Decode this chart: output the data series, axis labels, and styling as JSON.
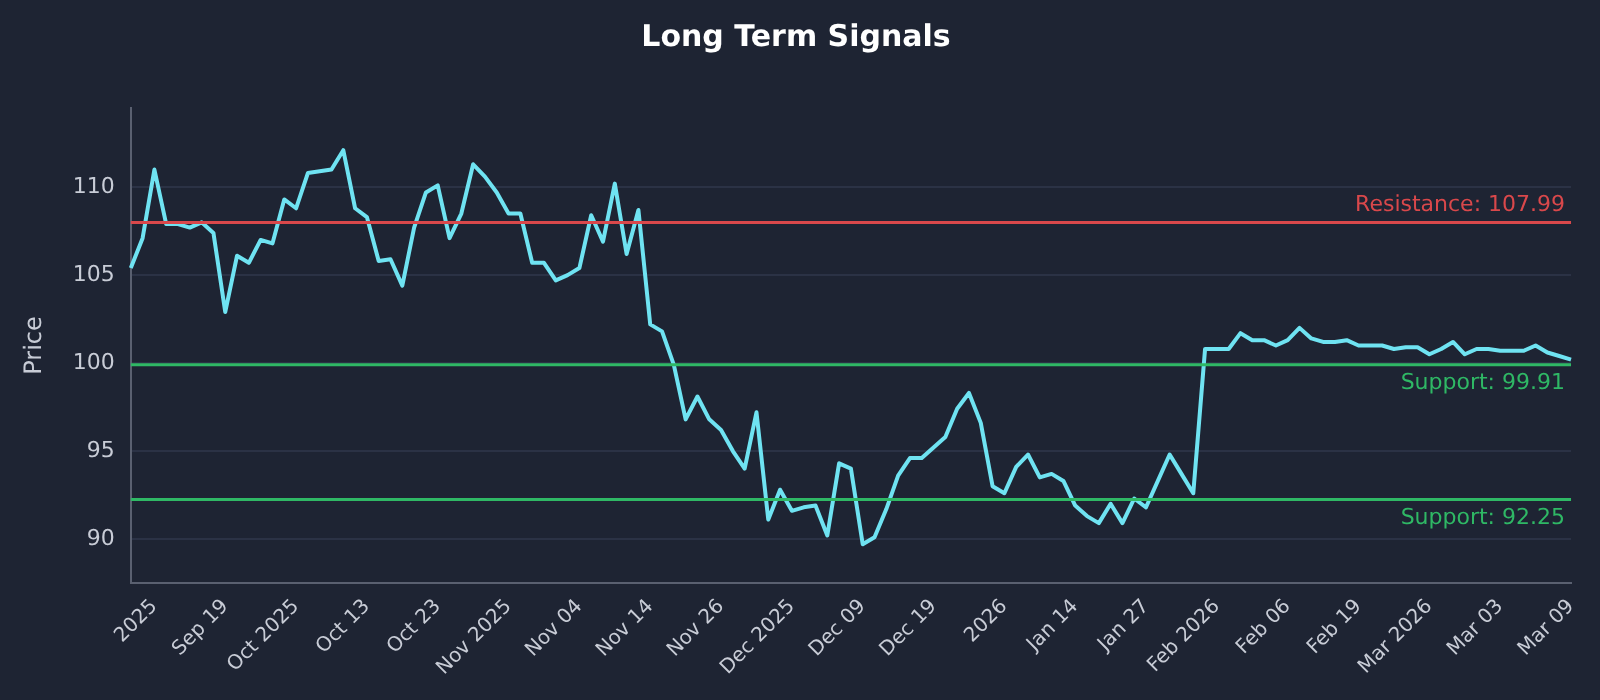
{
  "chart_data": {
    "type": "line",
    "title": "Long Term Signals",
    "ylabel": "Price",
    "categories": [
      null,
      null,
      "2025",
      null,
      null,
      null,
      null,
      null,
      "Sep 19",
      null,
      null,
      null,
      null,
      null,
      "Oct 2025",
      null,
      null,
      null,
      null,
      null,
      "Oct 13",
      null,
      null,
      null,
      null,
      null,
      "Oct 23",
      null,
      null,
      null,
      null,
      null,
      "Nov 2025",
      null,
      null,
      null,
      null,
      null,
      "Nov 04",
      null,
      null,
      null,
      null,
      null,
      "Nov 14",
      null,
      null,
      null,
      null,
      null,
      "Nov 26",
      null,
      null,
      null,
      null,
      null,
      "Dec 2025",
      null,
      null,
      null,
      null,
      null,
      "Dec 09",
      null,
      null,
      null,
      null,
      null,
      "Dec 19",
      null,
      null,
      null,
      null,
      null,
      "2026",
      null,
      null,
      null,
      null,
      null,
      "Jan 14",
      null,
      null,
      null,
      null,
      null,
      "Jan 27",
      null,
      null,
      null,
      null,
      null,
      "Feb 2026",
      null,
      null,
      null,
      null,
      null,
      "Feb 06",
      null,
      null,
      null,
      null,
      null,
      "Feb 19",
      null,
      null,
      null,
      null,
      null,
      "Mar 2026",
      null,
      null,
      null,
      null,
      null,
      "Mar 03",
      null,
      null,
      null,
      null,
      null,
      "Mar 09"
    ],
    "series": [
      {
        "color": "#6fe3f2",
        "values": [
          105.4,
          107.1,
          111.0,
          107.9,
          107.9,
          107.7,
          108.0,
          107.4,
          102.9,
          106.1,
          105.7,
          107.0,
          106.8,
          109.3,
          108.8,
          110.8,
          110.9,
          111.0,
          112.1,
          108.8,
          108.3,
          105.8,
          105.9,
          104.4,
          107.7,
          109.7,
          110.1,
          107.1,
          108.5,
          111.3,
          110.6,
          109.7,
          108.5,
          108.5,
          105.7,
          105.7,
          104.7,
          105.0,
          105.4,
          108.4,
          106.9,
          110.2,
          106.2,
          108.7,
          102.2,
          101.8,
          99.9,
          96.8,
          98.1,
          96.8,
          96.2,
          95.0,
          94.0,
          97.2,
          91.1,
          92.8,
          91.6,
          91.8,
          91.9,
          90.2,
          94.3,
          94.0,
          89.7,
          90.1,
          91.7,
          93.6,
          94.6,
          94.6,
          95.2,
          95.8,
          97.4,
          98.3,
          96.6,
          93.0,
          92.6,
          94.1,
          94.8,
          93.5,
          93.7,
          93.3,
          91.9,
          91.3,
          90.9,
          92.0,
          90.9,
          92.3,
          91.8,
          93.3,
          94.8,
          93.7,
          92.6,
          100.8,
          100.8,
          100.8,
          101.7,
          101.3,
          101.3,
          101.0,
          101.3,
          102.0,
          101.4,
          101.2,
          101.2,
          101.3,
          101.0,
          101.0,
          101.0,
          100.8,
          100.9,
          100.9,
          100.5,
          100.8,
          101.2,
          100.5,
          100.8,
          100.8,
          100.7,
          100.7,
          100.7,
          101.0,
          100.6,
          100.4,
          100.2
        ]
      }
    ],
    "ylim": [
      87.5,
      114.5
    ],
    "yticks": [
      90,
      95,
      100,
      105,
      110
    ],
    "ref_lines": [
      {
        "axis": "y",
        "value": 107.99,
        "label": "Resistance: 107.99",
        "color": "#d9484b"
      },
      {
        "axis": "y",
        "value": 99.91,
        "label": "Support: 99.91",
        "color": "#2fb865"
      },
      {
        "axis": "y",
        "value": 92.25,
        "label": "Support: 92.25",
        "color": "#2fb865"
      }
    ],
    "grid": "y",
    "legend": false,
    "marker": "none",
    "line_style": "solid"
  }
}
